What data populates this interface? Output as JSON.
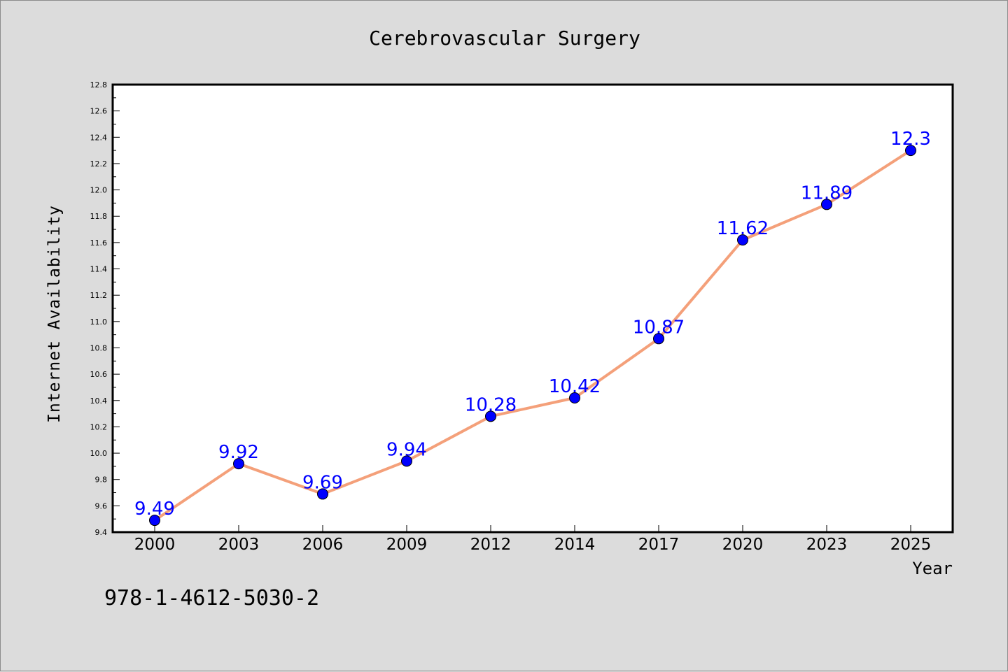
{
  "chart_data": {
    "type": "line",
    "title": "Cerebrovascular Surgery",
    "xlabel": "Year",
    "ylabel": "Internet Availability",
    "categories": [
      "2000",
      "2003",
      "2006",
      "2009",
      "2012",
      "2014",
      "2017",
      "2020",
      "2023",
      "2025"
    ],
    "series": [
      {
        "values": [
          9.49,
          9.92,
          9.69,
          9.94,
          10.28,
          10.42,
          10.87,
          11.62,
          11.89,
          12.3
        ],
        "labels": [
          "9.49",
          "9.92",
          "9.69",
          "9.94",
          "10.28",
          "10.42",
          "10.87",
          "11.62",
          "11.89",
          "12.3"
        ],
        "line_color": "#f4a07a",
        "marker_color": "#0000ff"
      }
    ],
    "ylim": [
      9.4,
      12.8
    ],
    "yticks": [
      "9.4",
      "9.6",
      "9.8",
      "10.0",
      "10.2",
      "10.4",
      "10.6",
      "10.8",
      "11.0",
      "11.2",
      "11.4",
      "11.6",
      "11.8",
      "12.0",
      "12.2",
      "12.4",
      "12.6",
      "12.8"
    ],
    "grid": false,
    "legend": "none",
    "data_label_color": "#0000ff"
  },
  "footer": {
    "isbn": "978-1-4612-5030-2"
  },
  "colors": {
    "background": "#dcdcdc",
    "plot_background": "#ffffff",
    "line": "#f4a07a",
    "marker": "#0000ff"
  }
}
